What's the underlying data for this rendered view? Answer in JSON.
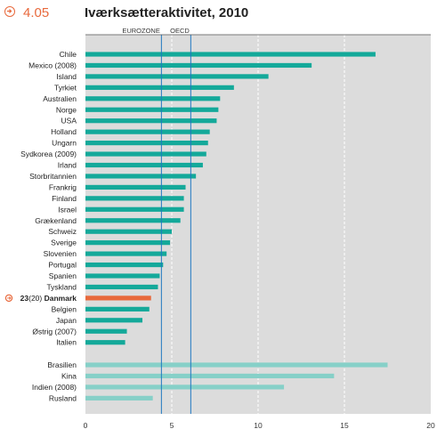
{
  "figure": {
    "number": "4.05",
    "title": "Iværksætteraktivitet, 2010"
  },
  "colors": {
    "accent": "#e8693c",
    "oecd_bar": "#14a99a",
    "other_bar": "#86d0c8",
    "highlight": "#e8693c",
    "plot_bg": "#dcdcdc",
    "ref_line": "#1f78c1"
  },
  "icon": "arrow-right-circle-icon",
  "chart_data": {
    "type": "bar",
    "orientation": "horizontal",
    "title": "Iværksætteraktivitet, 2010",
    "xlim": [
      0,
      20
    ],
    "xticks": [
      0,
      5,
      10,
      15,
      20
    ],
    "grid": true,
    "reference_lines": [
      {
        "label": "EUROZONE",
        "value": 4.4
      },
      {
        "label": "OECD",
        "value": 6.1
      }
    ],
    "groups": [
      {
        "bars": [
          {
            "label": "Chile",
            "value": 16.8
          },
          {
            "label": "Mexico (2008)",
            "value": 13.1
          },
          {
            "label": "Island",
            "value": 10.6
          },
          {
            "label": "Tyrkiet",
            "value": 8.6
          },
          {
            "label": "Australien",
            "value": 7.8
          },
          {
            "label": "Norge",
            "value": 7.7
          },
          {
            "label": "USA",
            "value": 7.6
          },
          {
            "label": "Holland",
            "value": 7.2
          },
          {
            "label": "Ungarn",
            "value": 7.1
          },
          {
            "label": "Sydkorea (2009)",
            "value": 7.0
          },
          {
            "label": "Irland",
            "value": 6.8
          },
          {
            "label": "Storbritannien",
            "value": 6.4
          },
          {
            "label": "Frankrig",
            "value": 5.8
          },
          {
            "label": "Finland",
            "value": 5.7
          },
          {
            "label": "Israel",
            "value": 5.7
          },
          {
            "label": "Grækenland",
            "value": 5.5
          },
          {
            "label": "Schweiz",
            "value": 5.0
          },
          {
            "label": "Sverige",
            "value": 4.9
          },
          {
            "label": "Slovenien",
            "value": 4.7
          },
          {
            "label": "Portugal",
            "value": 4.5
          },
          {
            "label": "Spanien",
            "value": 4.3
          },
          {
            "label": "Tyskland",
            "value": 4.2
          },
          {
            "label": "Danmark",
            "value": 3.8,
            "highlight": true,
            "rank": "23",
            "rank_note": "(20)"
          },
          {
            "label": "Belgien",
            "value": 3.7
          },
          {
            "label": "Japan",
            "value": 3.3
          },
          {
            "label": "Østrig (2007)",
            "value": 2.4
          },
          {
            "label": "Italien",
            "value": 2.3
          }
        ]
      },
      {
        "bars": [
          {
            "label": "Brasilien",
            "value": 17.5
          },
          {
            "label": "Kina",
            "value": 14.4
          },
          {
            "label": "Indien (2008)",
            "value": 11.5
          },
          {
            "label": "Rusland",
            "value": 3.9
          }
        ]
      }
    ]
  }
}
